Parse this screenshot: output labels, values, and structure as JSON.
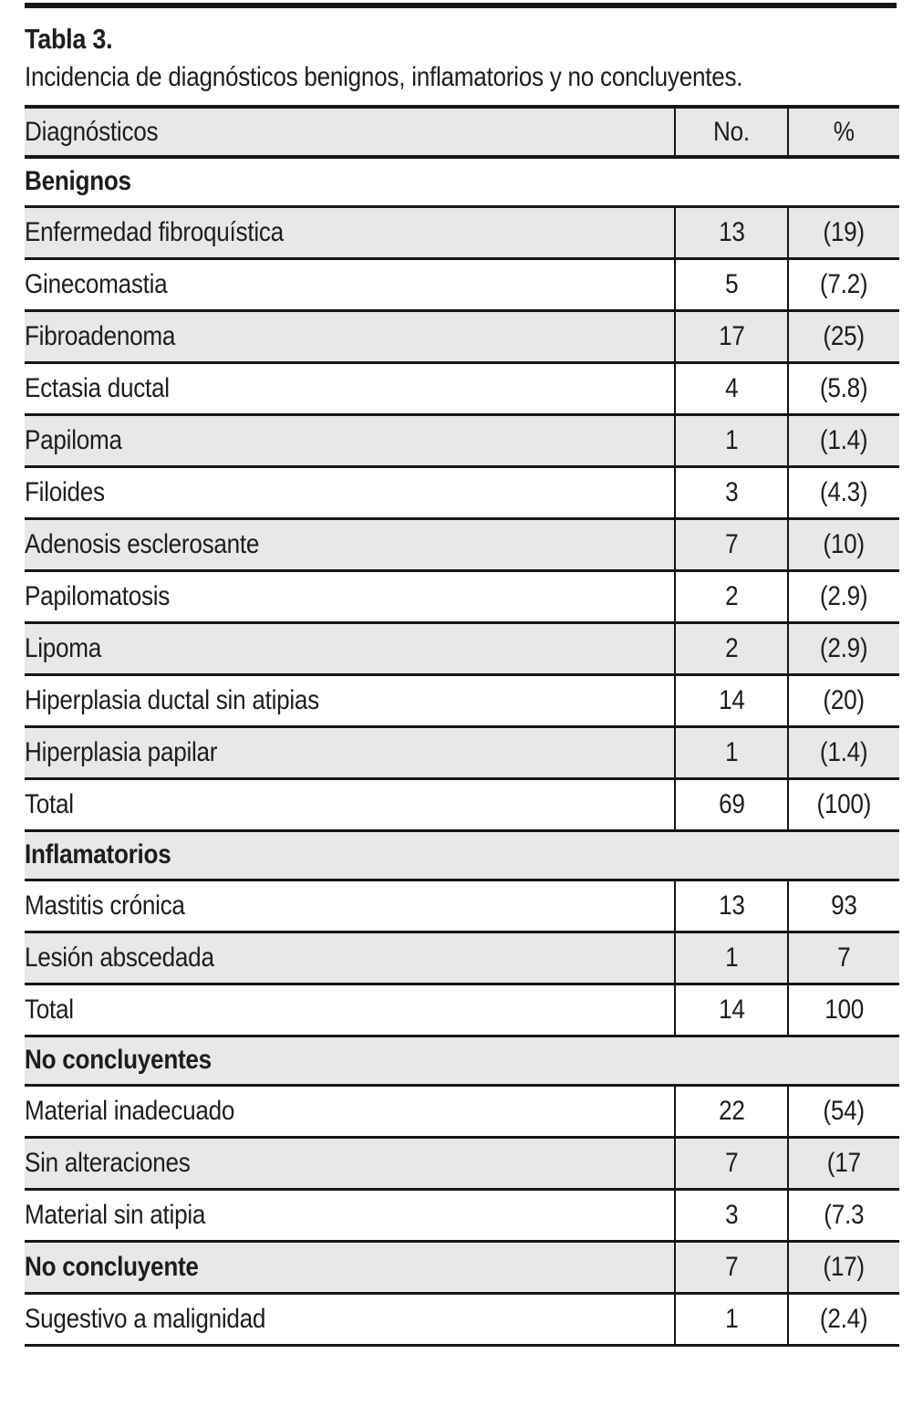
{
  "page": {
    "title": "Tabla 3.",
    "subtitle": "Incidencia de diagnósticos benignos, inflamatorios y no concluyentes."
  },
  "table": {
    "columns": [
      "Diagnósticos",
      "No.",
      "%"
    ],
    "rows": [
      {
        "label": "Benignos",
        "section": true,
        "shaded": false
      },
      {
        "label": "Enfermedad fibroquística",
        "no": "13",
        "pct": "(19)",
        "shaded": true
      },
      {
        "label": "Ginecomastia",
        "no": "5",
        "pct": "(7.2)",
        "shaded": false
      },
      {
        "label": "Fibroadenoma",
        "no": "17",
        "pct": "(25)",
        "shaded": true
      },
      {
        "label": "Ectasia ductal",
        "no": "4",
        "pct": "(5.8)",
        "shaded": false
      },
      {
        "label": "Papiloma",
        "no": "1",
        "pct": "(1.4)",
        "shaded": true
      },
      {
        "label": "Filoides",
        "no": "3",
        "pct": "(4.3)",
        "shaded": false
      },
      {
        "label": "Adenosis esclerosante",
        "no": "7",
        "pct": "(10)",
        "shaded": true
      },
      {
        "label": "Papilomatosis",
        "no": "2",
        "pct": "(2.9)",
        "shaded": false
      },
      {
        "label": "Lipoma",
        "no": "2",
        "pct": "(2.9)",
        "shaded": true
      },
      {
        "label": "Hiperplasia ductal sin atipias",
        "no": "14",
        "pct": "(20)",
        "shaded": false
      },
      {
        "label": "Hiperplasia papilar",
        "no": "1",
        "pct": "(1.4)",
        "shaded": true
      },
      {
        "label": "Total",
        "no": "69",
        "pct": "(100)",
        "shaded": false
      },
      {
        "label": "Inflamatorios",
        "section": true,
        "shaded": true
      },
      {
        "label": "Mastitis crónica",
        "no": "13",
        "pct": "93",
        "shaded": false
      },
      {
        "label": "Lesión abscedada",
        "no": "1",
        "pct": "7",
        "shaded": true
      },
      {
        "label": "Total",
        "no": "14",
        "pct": "100",
        "shaded": false
      },
      {
        "label": "No concluyentes",
        "section": true,
        "shaded": true
      },
      {
        "label": "Material inadecuado",
        "no": "22",
        "pct": "(54)",
        "shaded": false
      },
      {
        "label": "Sin alteraciones",
        "no": "7",
        "pct": "(17",
        "shaded": true
      },
      {
        "label": "Material sin atipia",
        "no": "3",
        "pct": "(7.3",
        "shaded": false
      },
      {
        "label": "No concluyente",
        "no": "7",
        "pct": "(17)",
        "shaded": true,
        "bold": true
      },
      {
        "label": "Sugestivo a malignidad",
        "no": "1",
        "pct": "(2.4)",
        "shaded": false
      }
    ]
  },
  "colors": {
    "shaded_row": "#e8e8e6",
    "rule": "#161616",
    "text": "#1d1d1b"
  }
}
